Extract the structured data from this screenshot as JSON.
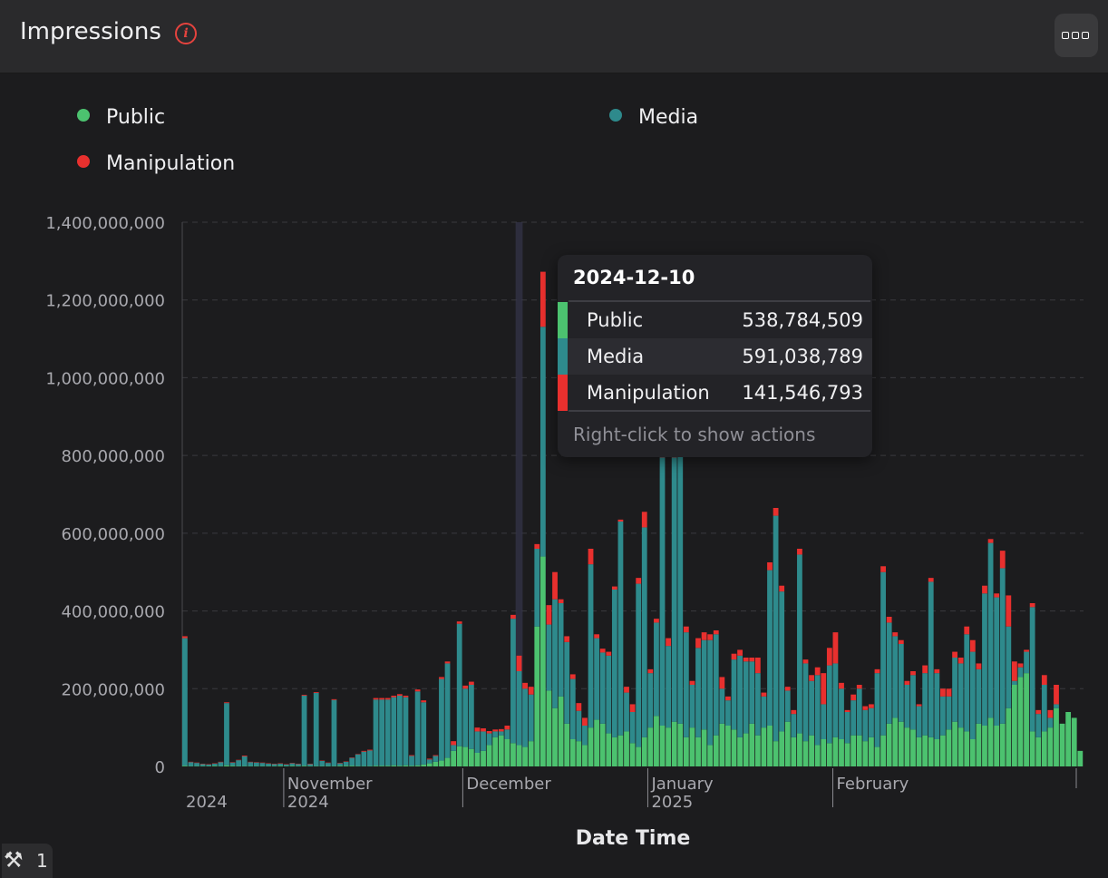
{
  "header": {
    "title": "Impressions",
    "info_icon": "info-icon",
    "menu_icon": "more-options-icon"
  },
  "legend": [
    {
      "label": "Public",
      "color": "#4cc26f"
    },
    {
      "label": "Media",
      "color": "#2e8a8c"
    },
    {
      "label": "Manipulation",
      "color": "#e8302e"
    }
  ],
  "tooltip": {
    "date": "2024-12-10",
    "rows": [
      {
        "label": "Public",
        "value": "538,784,509",
        "color": "#4cc26f"
      },
      {
        "label": "Media",
        "value": "591,038,789",
        "color": "#2e8a8c"
      },
      {
        "label": "Manipulation",
        "value": "141,546,793",
        "color": "#e8302e"
      }
    ],
    "hint": "Right-click to show actions"
  },
  "status": {
    "icon": "wrench-icon",
    "count": "1"
  },
  "chart_data": {
    "type": "bar",
    "stacked": true,
    "xlabel": "Date Time",
    "ylabel": "",
    "ylim": [
      0,
      1400000000
    ],
    "yticks": [
      "0",
      "200,000,000",
      "400,000,000",
      "600,000,000",
      "800,000,000",
      "1,000,000,000",
      "1,200,000,000",
      "1,400,000,000"
    ],
    "xticks": [
      {
        "label": "November",
        "sub": "2024",
        "date": "2024-11-01"
      },
      {
        "label": "December",
        "sub": "",
        "date": "2024-12-01"
      },
      {
        "label": "January",
        "sub": "2025",
        "date": "2025-01-01"
      },
      {
        "label": "February",
        "sub": "",
        "date": "2025-02-01"
      }
    ],
    "grid": true,
    "legend_position": "top",
    "highlight_date": "2024-12-10",
    "start_date": "2024-10-15",
    "series": [
      {
        "name": "Public",
        "color": "#4cc26f",
        "values": [
          2000000,
          1000000,
          1000000,
          1000000,
          1000000,
          2000000,
          1000000,
          3000000,
          2000000,
          1000000,
          1000000,
          1000000,
          1000000,
          1000000,
          1000000,
          1000000,
          2000000,
          1000000,
          2000000,
          1000000,
          2000000,
          1000000,
          1000000,
          1000000,
          1000000,
          1000000,
          2000000,
          2000000,
          2000000,
          1000000,
          1000000,
          1000000,
          2000000,
          2000000,
          2000000,
          3000000,
          2000000,
          3000000,
          2000000,
          3000000,
          5000000,
          8000000,
          12000000,
          15000000,
          22000000,
          40000000,
          52000000,
          50000000,
          45000000,
          35000000,
          40000000,
          55000000,
          75000000,
          80000000,
          70000000,
          60000000,
          55000000,
          50000000,
          65000000,
          360000000,
          540000000,
          195000000,
          150000000,
          180000000,
          110000000,
          70000000,
          65000000,
          55000000,
          100000000,
          120000000,
          110000000,
          85000000,
          75000000,
          80000000,
          90000000,
          60000000,
          50000000,
          75000000,
          100000000,
          130000000,
          105000000,
          100000000,
          115000000,
          110000000,
          75000000,
          100000000,
          75000000,
          95000000,
          55000000,
          80000000,
          110000000,
          105000000,
          95000000,
          75000000,
          85000000,
          110000000,
          80000000,
          100000000,
          105000000,
          65000000,
          90000000,
          115000000,
          75000000,
          85000000,
          65000000,
          80000000,
          55000000,
          70000000,
          60000000,
          75000000,
          70000000,
          60000000,
          80000000,
          80000000,
          65000000,
          75000000,
          50000000,
          80000000,
          110000000,
          125000000,
          115000000,
          100000000,
          95000000,
          75000000,
          80000000,
          75000000,
          70000000,
          80000000,
          95000000,
          115000000,
          100000000,
          90000000,
          70000000,
          110000000,
          105000000,
          125000000,
          105000000,
          110000000,
          150000000,
          210000000,
          230000000,
          240000000,
          90000000,
          75000000,
          90000000,
          100000000,
          150000000,
          110000000,
          140000000,
          125000000,
          40000000
        ]
      },
      {
        "name": "Media",
        "color": "#2e8a8c",
        "values": [
          328000000,
          10000000,
          8000000,
          5000000,
          4000000,
          5000000,
          10000000,
          160000000,
          8000000,
          15000000,
          25000000,
          10000000,
          9000000,
          8000000,
          6000000,
          5000000,
          5000000,
          4000000,
          6000000,
          5000000,
          180000000,
          5000000,
          188000000,
          13000000,
          8000000,
          170000000,
          6000000,
          10000000,
          20000000,
          30000000,
          37000000,
          40000000,
          170000000,
          170000000,
          170000000,
          175000000,
          180000000,
          175000000,
          25000000,
          190000000,
          160000000,
          10000000,
          15000000,
          210000000,
          243000000,
          15000000,
          315000000,
          150000000,
          165000000,
          55000000,
          50000000,
          30000000,
          15000000,
          10000000,
          25000000,
          320000000,
          190000000,
          150000000,
          120000000,
          200000000,
          591038789,
          170000000,
          280000000,
          240000000,
          210000000,
          155000000,
          78000000,
          50000000,
          420000000,
          210000000,
          183000000,
          200000000,
          380000000,
          550000000,
          100000000,
          80000000,
          420000000,
          540000000,
          140000000,
          240000000,
          690000000,
          210000000,
          680000000,
          930000000,
          270000000,
          110000000,
          230000000,
          230000000,
          270000000,
          260000000,
          90000000,
          65000000,
          180000000,
          210000000,
          185000000,
          160000000,
          160000000,
          80000000,
          400000000,
          580000000,
          360000000,
          80000000,
          60000000,
          460000000,
          200000000,
          140000000,
          180000000,
          90000000,
          200000000,
          190000000,
          130000000,
          80000000,
          90000000,
          120000000,
          80000000,
          75000000,
          190000000,
          420000000,
          260000000,
          210000000,
          200000000,
          110000000,
          140000000,
          80000000,
          160000000,
          400000000,
          170000000,
          100000000,
          85000000,
          165000000,
          165000000,
          250000000,
          225000000,
          140000000,
          340000000,
          450000000,
          330000000,
          400000000,
          210000000,
          10000000,
          25000000,
          55000000,
          320000000,
          60000000,
          120000000,
          25000000,
          10000000
        ]
      },
      {
        "name": "Manipulation",
        "color": "#e8302e",
        "values": [
          5000000,
          1000000,
          1000000,
          1000000,
          1000000,
          1000000,
          1000000,
          2000000,
          1000000,
          1000000,
          2000000,
          1000000,
          1000000,
          1000000,
          1000000,
          1000000,
          1000000,
          1000000,
          1000000,
          1000000,
          2000000,
          1000000,
          2000000,
          1000000,
          1000000,
          2000000,
          1000000,
          1000000,
          1000000,
          1000000,
          2000000,
          2000000,
          4000000,
          4000000,
          4000000,
          4000000,
          4000000,
          4000000,
          2000000,
          5000000,
          5000000,
          2000000,
          2000000,
          5000000,
          5000000,
          10000000,
          6000000,
          8000000,
          8000000,
          10000000,
          8000000,
          6000000,
          5000000,
          6000000,
          10000000,
          10000000,
          40000000,
          15000000,
          20000000,
          12000000,
          141546793,
          50000000,
          70000000,
          10000000,
          15000000,
          12000000,
          20000000,
          20000000,
          40000000,
          10000000,
          10000000,
          10000000,
          8000000,
          5000000,
          15000000,
          20000000,
          15000000,
          40000000,
          10000000,
          10000000,
          5000000,
          20000000,
          10000000,
          10000000,
          15000000,
          10000000,
          25000000,
          20000000,
          15000000,
          10000000,
          30000000,
          10000000,
          15000000,
          15000000,
          10000000,
          10000000,
          40000000,
          10000000,
          20000000,
          20000000,
          15000000,
          10000000,
          10000000,
          15000000,
          10000000,
          15000000,
          20000000,
          80000000,
          45000000,
          80000000,
          15000000,
          5000000,
          15000000,
          10000000,
          10000000,
          10000000,
          10000000,
          15000000,
          15000000,
          10000000,
          10000000,
          10000000,
          10000000,
          5000000,
          20000000,
          10000000,
          10000000,
          20000000,
          20000000,
          15000000,
          15000000,
          20000000,
          30000000,
          15000000,
          20000000,
          10000000,
          10000000,
          45000000,
          80000000,
          50000000,
          10000000,
          5000000,
          10000000,
          10000000,
          25000000,
          20000000,
          50000000,
          40000000,
          5000000
        ]
      }
    ]
  }
}
